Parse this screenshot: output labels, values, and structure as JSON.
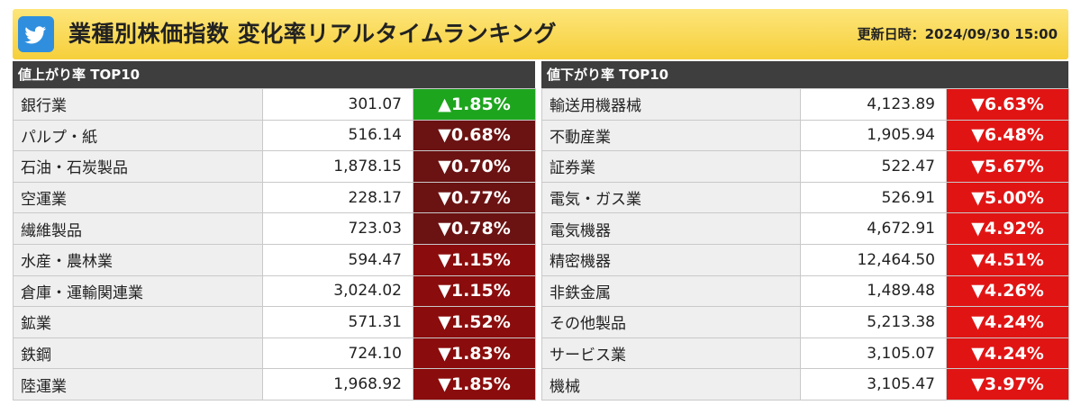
{
  "header": {
    "title": "業種別株価指数 変化率リアルタイムランキング",
    "updated_label": "更新日時：",
    "updated_value": "2024/09/30 15:00"
  },
  "gainers": {
    "heading": "値上がり率 TOP10",
    "rows": [
      {
        "name": "銀行業",
        "value": "301.07",
        "change": "▲1.85%"
      },
      {
        "name": "パルプ・紙",
        "value": "516.14",
        "change": "▼0.68%"
      },
      {
        "name": "石油・石炭製品",
        "value": "1,878.15",
        "change": "▼0.70%"
      },
      {
        "name": "空運業",
        "value": "228.17",
        "change": "▼0.77%"
      },
      {
        "name": "繊維製品",
        "value": "723.03",
        "change": "▼0.78%"
      },
      {
        "name": "水産・農林業",
        "value": "594.47",
        "change": "▼1.15%"
      },
      {
        "name": "倉庫・運輸関連業",
        "value": "3,024.02",
        "change": "▼1.15%"
      },
      {
        "name": "鉱業",
        "value": "571.31",
        "change": "▼1.52%"
      },
      {
        "name": "鉄鋼",
        "value": "724.10",
        "change": "▼1.83%"
      },
      {
        "name": "陸運業",
        "value": "1,968.92",
        "change": "▼1.85%"
      }
    ]
  },
  "losers": {
    "heading": "値下がり率 TOP10",
    "rows": [
      {
        "name": "輸送用機器械",
        "value": "4,123.89",
        "change": "▼6.63%"
      },
      {
        "name": "不動産業",
        "value": "1,905.94",
        "change": "▼6.48%"
      },
      {
        "name": "証券業",
        "value": "522.47",
        "change": "▼5.67%"
      },
      {
        "name": "電気・ガス業",
        "value": "526.91",
        "change": "▼5.00%"
      },
      {
        "name": "電気機器",
        "value": "4,672.91",
        "change": "▼4.92%"
      },
      {
        "name": "精密機器",
        "value": "12,464.50",
        "change": "▼4.51%"
      },
      {
        "name": "非鉄金属",
        "value": "1,489.48",
        "change": "▼4.26%"
      },
      {
        "name": "その他製品",
        "value": "5,213.38",
        "change": "▼4.24%"
      },
      {
        "name": "サービス業",
        "value": "3,105.07",
        "change": "▼4.24%"
      },
      {
        "name": "機械",
        "value": "3,105.47",
        "change": "▼3.97%"
      }
    ]
  },
  "colors": {
    "header_bg": "#f8d84e",
    "up_green": "#1ea51e",
    "down_dark_red": "#6b1212",
    "down_red": "#e11414",
    "twitter_blue": "#2f8fde"
  }
}
